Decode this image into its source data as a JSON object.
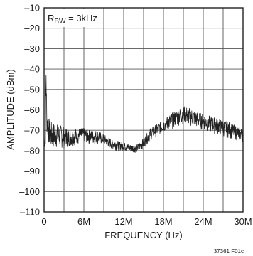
{
  "chart_data": {
    "type": "line",
    "xlabel": "FREQUENCY (Hz)",
    "ylabel": "AMPLITUDE (dBm)",
    "xlim": [
      0,
      30
    ],
    "ylim": [
      -110,
      -10
    ],
    "x_unit": "MHz",
    "x_ticks": [
      0,
      6,
      12,
      18,
      24,
      30
    ],
    "x_tick_labels": [
      "0",
      "6M",
      "12M",
      "18M",
      "24M",
      "30M"
    ],
    "x_minor_ticks": [
      3,
      9,
      15,
      21,
      27
    ],
    "y_ticks": [
      -10,
      -20,
      -30,
      -40,
      -50,
      -60,
      -70,
      -80,
      -90,
      -100,
      -110
    ],
    "y_tick_labels": [
      "–10",
      "–20",
      "–30",
      "–40",
      "–50",
      "–60",
      "–70",
      "–80",
      "–90",
      "–100",
      "–110"
    ],
    "grid": true,
    "annotation": {
      "prefix": "R",
      "subscript": "BW",
      "suffix": " = 3kHz"
    },
    "figure_code": "37361 F01c",
    "series": [
      {
        "color": "#222222",
        "envelope": {
          "x": [
            0,
            0.2,
            0.3,
            0.4,
            0.6,
            1,
            2,
            3,
            4,
            5,
            6,
            7,
            8,
            9,
            10,
            11,
            12,
            13,
            14,
            15,
            16,
            17,
            18,
            19,
            20,
            21,
            22,
            23,
            24,
            25,
            26,
            27,
            28,
            29,
            30
          ],
          "low": [
            -79,
            -78,
            -55,
            -72,
            -76,
            -80,
            -79,
            -79,
            -78,
            -77,
            -76,
            -77,
            -77,
            -77,
            -79,
            -80,
            -80,
            -81,
            -81,
            -79,
            -75,
            -73,
            -71,
            -70,
            -68,
            -67,
            -68,
            -69,
            -70,
            -71,
            -72,
            -73,
            -74,
            -75,
            -76
          ],
          "high": [
            -79,
            -66,
            -31,
            -58,
            -63,
            -66,
            -67,
            -68,
            -70,
            -69,
            -69,
            -70,
            -70,
            -72,
            -74,
            -75,
            -76,
            -77,
            -77,
            -74,
            -69,
            -67,
            -65,
            -62,
            -60,
            -58,
            -59,
            -61,
            -62,
            -63,
            -64,
            -65,
            -66,
            -68,
            -69
          ]
        }
      }
    ]
  }
}
